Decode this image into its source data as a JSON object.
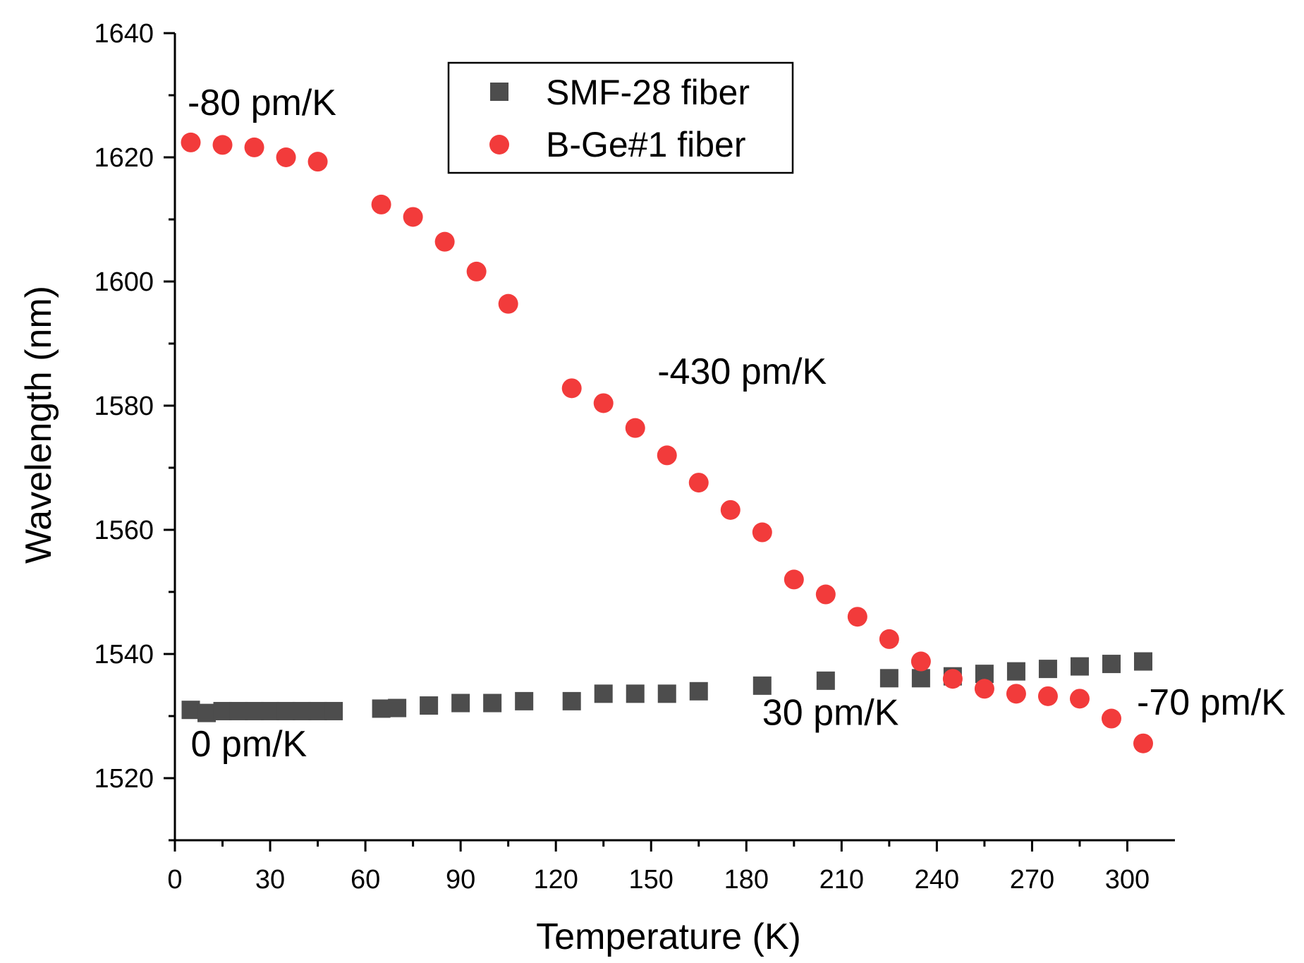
{
  "chart_data": {
    "type": "scatter",
    "title": "",
    "xlabel": "Temperature (K)",
    "ylabel": "Wavelength (nm)",
    "xlim": [
      0,
      315
    ],
    "ylim": [
      1510,
      1640
    ],
    "xticks": [
      0,
      30,
      60,
      90,
      120,
      150,
      180,
      210,
      240,
      270,
      300
    ],
    "yticks": [
      1520,
      1540,
      1560,
      1580,
      1600,
      1620,
      1640
    ],
    "legend_position": "top-center",
    "series": [
      {
        "name": "SMF-28 fiber",
        "marker": "square",
        "color": "#4d4d4d",
        "points": [
          [
            5,
            1531.0
          ],
          [
            10,
            1530.5
          ],
          [
            15,
            1530.8
          ],
          [
            20,
            1530.8
          ],
          [
            25,
            1530.8
          ],
          [
            30,
            1530.8
          ],
          [
            35,
            1530.8
          ],
          [
            40,
            1530.8
          ],
          [
            45,
            1530.8
          ],
          [
            50,
            1530.8
          ],
          [
            65,
            1531.2
          ],
          [
            70,
            1531.3
          ],
          [
            80,
            1531.7
          ],
          [
            90,
            1532.1
          ],
          [
            100,
            1532.1
          ],
          [
            110,
            1532.4
          ],
          [
            125,
            1532.4
          ],
          [
            135,
            1533.6
          ],
          [
            145,
            1533.6
          ],
          [
            155,
            1533.6
          ],
          [
            165,
            1534.0
          ],
          [
            185,
            1534.9
          ],
          [
            205,
            1535.7
          ],
          [
            225,
            1536.1
          ],
          [
            235,
            1536.1
          ],
          [
            245,
            1536.4
          ],
          [
            255,
            1536.8
          ],
          [
            265,
            1537.2
          ],
          [
            275,
            1537.6
          ],
          [
            285,
            1538.0
          ],
          [
            295,
            1538.4
          ],
          [
            305,
            1538.8
          ]
        ]
      },
      {
        "name": "B-Ge#1 fiber",
        "marker": "circle",
        "color": "#f23b3b",
        "points": [
          [
            5,
            1622.4
          ],
          [
            15,
            1622.0
          ],
          [
            25,
            1621.6
          ],
          [
            35,
            1620.0
          ],
          [
            45,
            1619.3
          ],
          [
            65,
            1612.4
          ],
          [
            75,
            1610.4
          ],
          [
            85,
            1606.4
          ],
          [
            95,
            1601.6
          ],
          [
            105,
            1596.4
          ],
          [
            125,
            1582.8
          ],
          [
            135,
            1580.4
          ],
          [
            145,
            1576.4
          ],
          [
            155,
            1572.0
          ],
          [
            165,
            1567.6
          ],
          [
            175,
            1563.2
          ],
          [
            185,
            1559.6
          ],
          [
            195,
            1552.0
          ],
          [
            205,
            1549.6
          ],
          [
            215,
            1546.0
          ],
          [
            225,
            1542.4
          ],
          [
            235,
            1538.8
          ],
          [
            245,
            1536.0
          ],
          [
            255,
            1534.4
          ],
          [
            265,
            1533.6
          ],
          [
            275,
            1533.2
          ],
          [
            285,
            1532.8
          ],
          [
            295,
            1529.6
          ],
          [
            305,
            1525.6
          ]
        ]
      }
    ],
    "annotations": [
      {
        "text": "-80 pm/K",
        "x": 4,
        "y": 1626.8
      },
      {
        "text": "-430 pm/K",
        "x": 152,
        "y": 1583.5
      },
      {
        "text": "0 pm/K",
        "x": 5,
        "y": 1523.5
      },
      {
        "text": "30 pm/K",
        "x": 185,
        "y": 1528.6
      },
      {
        "text": "-70 pm/K",
        "x": 303,
        "y": 1530.2
      }
    ]
  }
}
